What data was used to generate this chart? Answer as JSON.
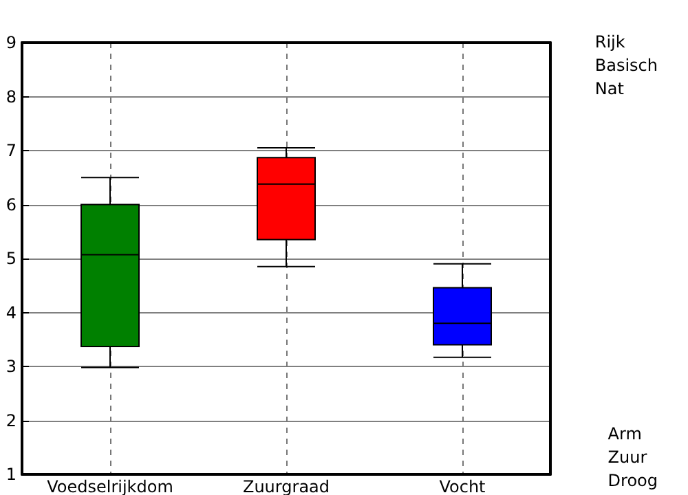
{
  "chart_data": {
    "type": "box",
    "categories": [
      "Voedselrijkdom",
      "Zuurgraad",
      "Vocht"
    ],
    "boxes": [
      {
        "low": 2.98,
        "q1": 3.37,
        "median": 5.07,
        "q3": 6.0,
        "high": 6.5
      },
      {
        "low": 4.85,
        "q1": 5.35,
        "median": 6.38,
        "q3": 6.87,
        "high": 7.05
      },
      {
        "low": 3.17,
        "q1": 3.4,
        "median": 3.8,
        "q3": 4.46,
        "high": 4.9
      }
    ],
    "colors": [
      "#008000",
      "#ff0000",
      "#0000ff"
    ],
    "ylim": [
      1,
      9
    ],
    "yticks": [
      1,
      2,
      3,
      4,
      5,
      6,
      7,
      8,
      9
    ],
    "grid": true,
    "annotations": [
      "Rijk\nBasisch\nNat",
      "Arm\nZuur\nDroog"
    ]
  }
}
